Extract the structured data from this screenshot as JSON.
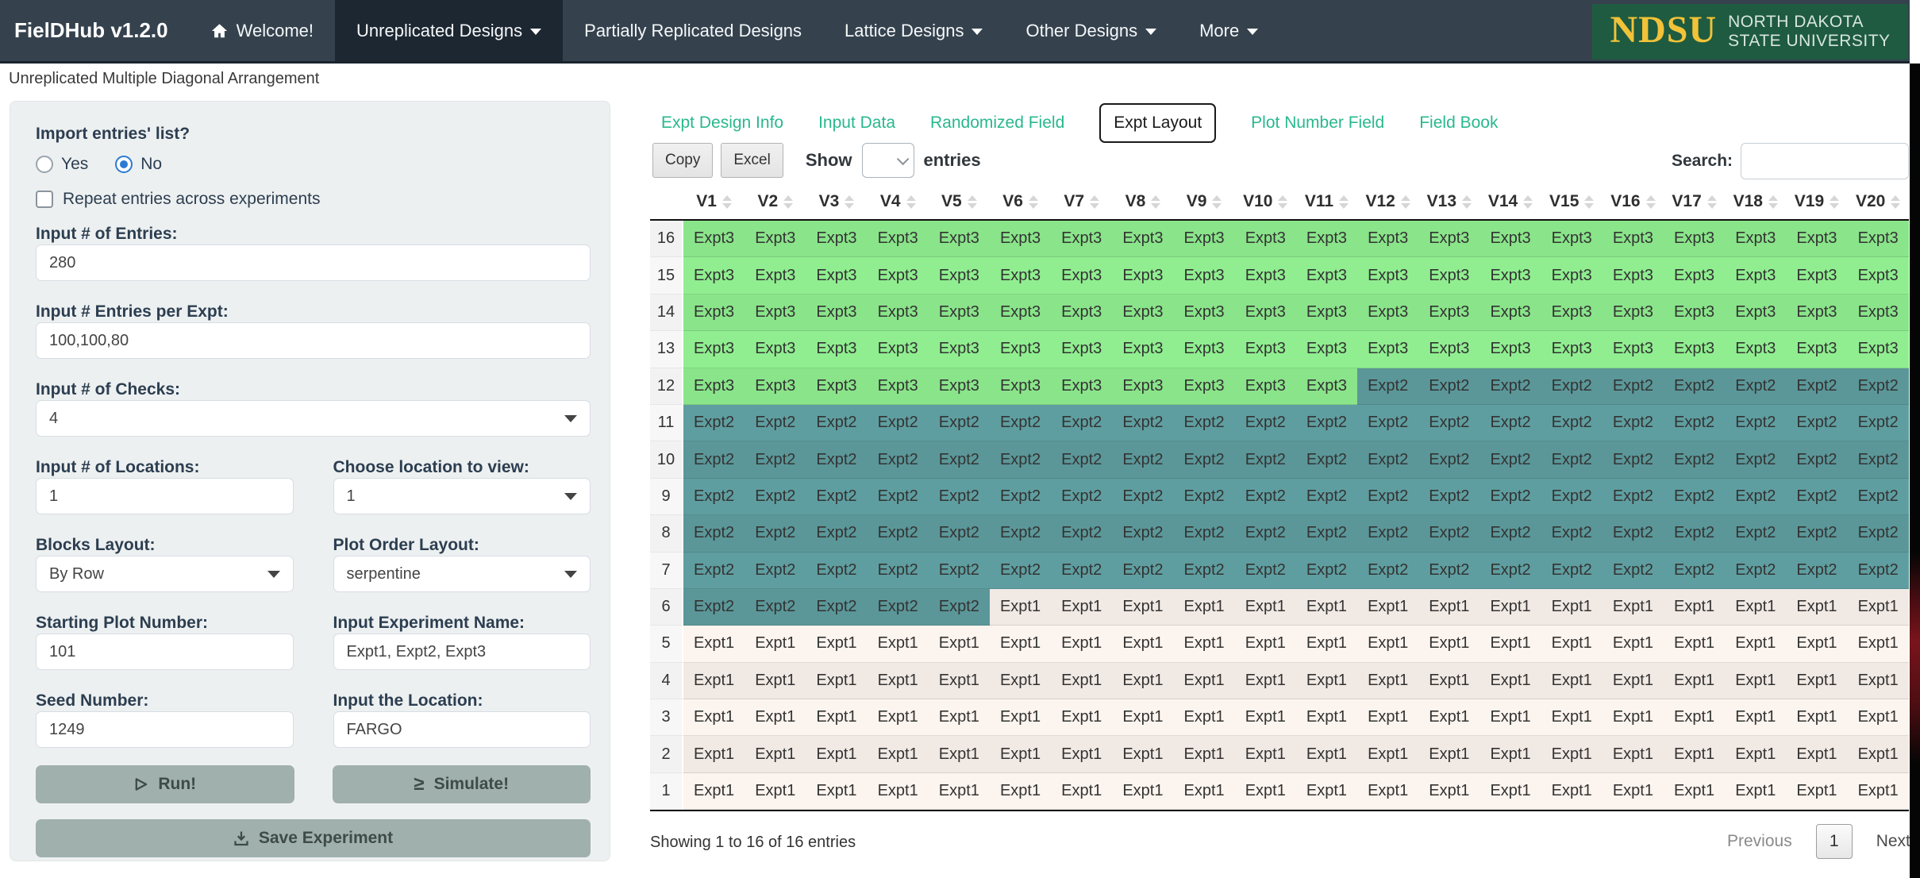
{
  "navbar": {
    "brand": "FielDHub v1.2.0",
    "items": [
      {
        "label": "Welcome!",
        "icon": "home-icon",
        "active": false,
        "caret": false
      },
      {
        "label": "Unreplicated Designs",
        "icon": null,
        "active": true,
        "caret": true
      },
      {
        "label": "Partially Replicated Designs",
        "icon": null,
        "active": false,
        "caret": false
      },
      {
        "label": "Lattice Designs",
        "icon": null,
        "active": false,
        "caret": true
      },
      {
        "label": "Other Designs",
        "icon": null,
        "active": false,
        "caret": true
      },
      {
        "label": "More",
        "icon": null,
        "active": false,
        "caret": true
      }
    ],
    "logo": {
      "acronym": "NDSU",
      "line1": "NORTH DAKOTA",
      "line2": "STATE UNIVERSITY",
      "bg_color": "#1e5b40",
      "acronym_color": "#f2c238",
      "text_color": "#d8e5de"
    }
  },
  "page_title": "Unreplicated Multiple Diagonal Arrangement",
  "sidebar": {
    "import_question": {
      "label": "Import entries' list?",
      "options": [
        {
          "label": "Yes",
          "selected": false
        },
        {
          "label": "No",
          "selected": true
        }
      ]
    },
    "repeat_checkbox": {
      "label": "Repeat entries across experiments",
      "checked": false
    },
    "entries": {
      "label": "Input # of Entries:",
      "value": "280"
    },
    "entries_per_expt": {
      "label": "Input # Entries per Expt:",
      "value": "100,100,80"
    },
    "checks": {
      "label": "Input # of Checks:",
      "value": "4"
    },
    "locations": {
      "label": "Input # of Locations:",
      "value": "1"
    },
    "location_view": {
      "label": "Choose location to view:",
      "value": "1"
    },
    "blocks_layout": {
      "label": "Blocks Layout:",
      "value": "By Row"
    },
    "plot_order": {
      "label": "Plot Order Layout:",
      "value": "serpentine"
    },
    "starting_plot": {
      "label": "Starting Plot Number:",
      "value": "101"
    },
    "experiment_name": {
      "label": "Input Experiment Name:",
      "value": "Expt1, Expt2, Expt3"
    },
    "seed": {
      "label": "Seed Number:",
      "value": "1249"
    },
    "location_name": {
      "label": "Input the Location:",
      "value": "FARGO"
    },
    "run_button": {
      "label": "Run!",
      "icon": "play-icon"
    },
    "simulate_button": {
      "label": "Simulate!",
      "icon": "greater-equal-icon"
    },
    "save_button": {
      "label": "Save Experiment",
      "icon": "download-icon"
    }
  },
  "tabs": [
    {
      "label": "Expt Design Info",
      "active": false
    },
    {
      "label": "Input Data",
      "active": false
    },
    {
      "label": "Randomized Field",
      "active": false
    },
    {
      "label": "Expt Layout",
      "active": true
    },
    {
      "label": "Plot Number Field",
      "active": false
    },
    {
      "label": "Field Book",
      "active": false
    }
  ],
  "toolbar": {
    "copy_label": "Copy",
    "excel_label": "Excel",
    "show_label": "Show",
    "show_value": "",
    "entries_label": "entries",
    "search_label": "Search:",
    "search_value": ""
  },
  "table": {
    "columns": [
      "V1",
      "V2",
      "V3",
      "V4",
      "V5",
      "V6",
      "V7",
      "V8",
      "V9",
      "V10",
      "V11",
      "V12",
      "V13",
      "V14",
      "V15",
      "V16",
      "V17",
      "V18",
      "V19",
      "V20"
    ],
    "rows": [
      {
        "row": "16",
        "cells": [
          "Expt3",
          "Expt3",
          "Expt3",
          "Expt3",
          "Expt3",
          "Expt3",
          "Expt3",
          "Expt3",
          "Expt3",
          "Expt3",
          "Expt3",
          "Expt3",
          "Expt3",
          "Expt3",
          "Expt3",
          "Expt3",
          "Expt3",
          "Expt3",
          "Expt3",
          "Expt3"
        ]
      },
      {
        "row": "15",
        "cells": [
          "Expt3",
          "Expt3",
          "Expt3",
          "Expt3",
          "Expt3",
          "Expt3",
          "Expt3",
          "Expt3",
          "Expt3",
          "Expt3",
          "Expt3",
          "Expt3",
          "Expt3",
          "Expt3",
          "Expt3",
          "Expt3",
          "Expt3",
          "Expt3",
          "Expt3",
          "Expt3"
        ]
      },
      {
        "row": "14",
        "cells": [
          "Expt3",
          "Expt3",
          "Expt3",
          "Expt3",
          "Expt3",
          "Expt3",
          "Expt3",
          "Expt3",
          "Expt3",
          "Expt3",
          "Expt3",
          "Expt3",
          "Expt3",
          "Expt3",
          "Expt3",
          "Expt3",
          "Expt3",
          "Expt3",
          "Expt3",
          "Expt3"
        ]
      },
      {
        "row": "13",
        "cells": [
          "Expt3",
          "Expt3",
          "Expt3",
          "Expt3",
          "Expt3",
          "Expt3",
          "Expt3",
          "Expt3",
          "Expt3",
          "Expt3",
          "Expt3",
          "Expt3",
          "Expt3",
          "Expt3",
          "Expt3",
          "Expt3",
          "Expt3",
          "Expt3",
          "Expt3",
          "Expt3"
        ]
      },
      {
        "row": "12",
        "cells": [
          "Expt3",
          "Expt3",
          "Expt3",
          "Expt3",
          "Expt3",
          "Expt3",
          "Expt3",
          "Expt3",
          "Expt3",
          "Expt3",
          "Expt3",
          "Expt2",
          "Expt2",
          "Expt2",
          "Expt2",
          "Expt2",
          "Expt2",
          "Expt2",
          "Expt2",
          "Expt2"
        ]
      },
      {
        "row": "11",
        "cells": [
          "Expt2",
          "Expt2",
          "Expt2",
          "Expt2",
          "Expt2",
          "Expt2",
          "Expt2",
          "Expt2",
          "Expt2",
          "Expt2",
          "Expt2",
          "Expt2",
          "Expt2",
          "Expt2",
          "Expt2",
          "Expt2",
          "Expt2",
          "Expt2",
          "Expt2",
          "Expt2"
        ]
      },
      {
        "row": "10",
        "cells": [
          "Expt2",
          "Expt2",
          "Expt2",
          "Expt2",
          "Expt2",
          "Expt2",
          "Expt2",
          "Expt2",
          "Expt2",
          "Expt2",
          "Expt2",
          "Expt2",
          "Expt2",
          "Expt2",
          "Expt2",
          "Expt2",
          "Expt2",
          "Expt2",
          "Expt2",
          "Expt2"
        ]
      },
      {
        "row": "9",
        "cells": [
          "Expt2",
          "Expt2",
          "Expt2",
          "Expt2",
          "Expt2",
          "Expt2",
          "Expt2",
          "Expt2",
          "Expt2",
          "Expt2",
          "Expt2",
          "Expt2",
          "Expt2",
          "Expt2",
          "Expt2",
          "Expt2",
          "Expt2",
          "Expt2",
          "Expt2",
          "Expt2"
        ]
      },
      {
        "row": "8",
        "cells": [
          "Expt2",
          "Expt2",
          "Expt2",
          "Expt2",
          "Expt2",
          "Expt2",
          "Expt2",
          "Expt2",
          "Expt2",
          "Expt2",
          "Expt2",
          "Expt2",
          "Expt2",
          "Expt2",
          "Expt2",
          "Expt2",
          "Expt2",
          "Expt2",
          "Expt2",
          "Expt2"
        ]
      },
      {
        "row": "7",
        "cells": [
          "Expt2",
          "Expt2",
          "Expt2",
          "Expt2",
          "Expt2",
          "Expt2",
          "Expt2",
          "Expt2",
          "Expt2",
          "Expt2",
          "Expt2",
          "Expt2",
          "Expt2",
          "Expt2",
          "Expt2",
          "Expt2",
          "Expt2",
          "Expt2",
          "Expt2",
          "Expt2"
        ]
      },
      {
        "row": "6",
        "cells": [
          "Expt2",
          "Expt2",
          "Expt2",
          "Expt2",
          "Expt2",
          "Expt1",
          "Expt1",
          "Expt1",
          "Expt1",
          "Expt1",
          "Expt1",
          "Expt1",
          "Expt1",
          "Expt1",
          "Expt1",
          "Expt1",
          "Expt1",
          "Expt1",
          "Expt1",
          "Expt1"
        ]
      },
      {
        "row": "5",
        "cells": [
          "Expt1",
          "Expt1",
          "Expt1",
          "Expt1",
          "Expt1",
          "Expt1",
          "Expt1",
          "Expt1",
          "Expt1",
          "Expt1",
          "Expt1",
          "Expt1",
          "Expt1",
          "Expt1",
          "Expt1",
          "Expt1",
          "Expt1",
          "Expt1",
          "Expt1",
          "Expt1"
        ]
      },
      {
        "row": "4",
        "cells": [
          "Expt1",
          "Expt1",
          "Expt1",
          "Expt1",
          "Expt1",
          "Expt1",
          "Expt1",
          "Expt1",
          "Expt1",
          "Expt1",
          "Expt1",
          "Expt1",
          "Expt1",
          "Expt1",
          "Expt1",
          "Expt1",
          "Expt1",
          "Expt1",
          "Expt1",
          "Expt1"
        ]
      },
      {
        "row": "3",
        "cells": [
          "Expt1",
          "Expt1",
          "Expt1",
          "Expt1",
          "Expt1",
          "Expt1",
          "Expt1",
          "Expt1",
          "Expt1",
          "Expt1",
          "Expt1",
          "Expt1",
          "Expt1",
          "Expt1",
          "Expt1",
          "Expt1",
          "Expt1",
          "Expt1",
          "Expt1",
          "Expt1"
        ]
      },
      {
        "row": "2",
        "cells": [
          "Expt1",
          "Expt1",
          "Expt1",
          "Expt1",
          "Expt1",
          "Expt1",
          "Expt1",
          "Expt1",
          "Expt1",
          "Expt1",
          "Expt1",
          "Expt1",
          "Expt1",
          "Expt1",
          "Expt1",
          "Expt1",
          "Expt1",
          "Expt1",
          "Expt1",
          "Expt1"
        ]
      },
      {
        "row": "1",
        "cells": [
          "Expt1",
          "Expt1",
          "Expt1",
          "Expt1",
          "Expt1",
          "Expt1",
          "Expt1",
          "Expt1",
          "Expt1",
          "Expt1",
          "Expt1",
          "Expt1",
          "Expt1",
          "Expt1",
          "Expt1",
          "Expt1",
          "Expt1",
          "Expt1",
          "Expt1",
          "Expt1"
        ]
      }
    ]
  },
  "footer": {
    "showing": "Showing 1 to 16 of 16 entries",
    "previous_label": "Previous",
    "page": "1",
    "next_label": "Next"
  },
  "colors": {
    "navbar_bg": "#35424e",
    "navbar_active_bg": "#1d2731",
    "tab_accent": "#29b88e",
    "expt_colors": {
      "Expt1": "#fcf4ee",
      "Expt2": "#5f9ea0",
      "Expt3": "#90ee90"
    }
  }
}
